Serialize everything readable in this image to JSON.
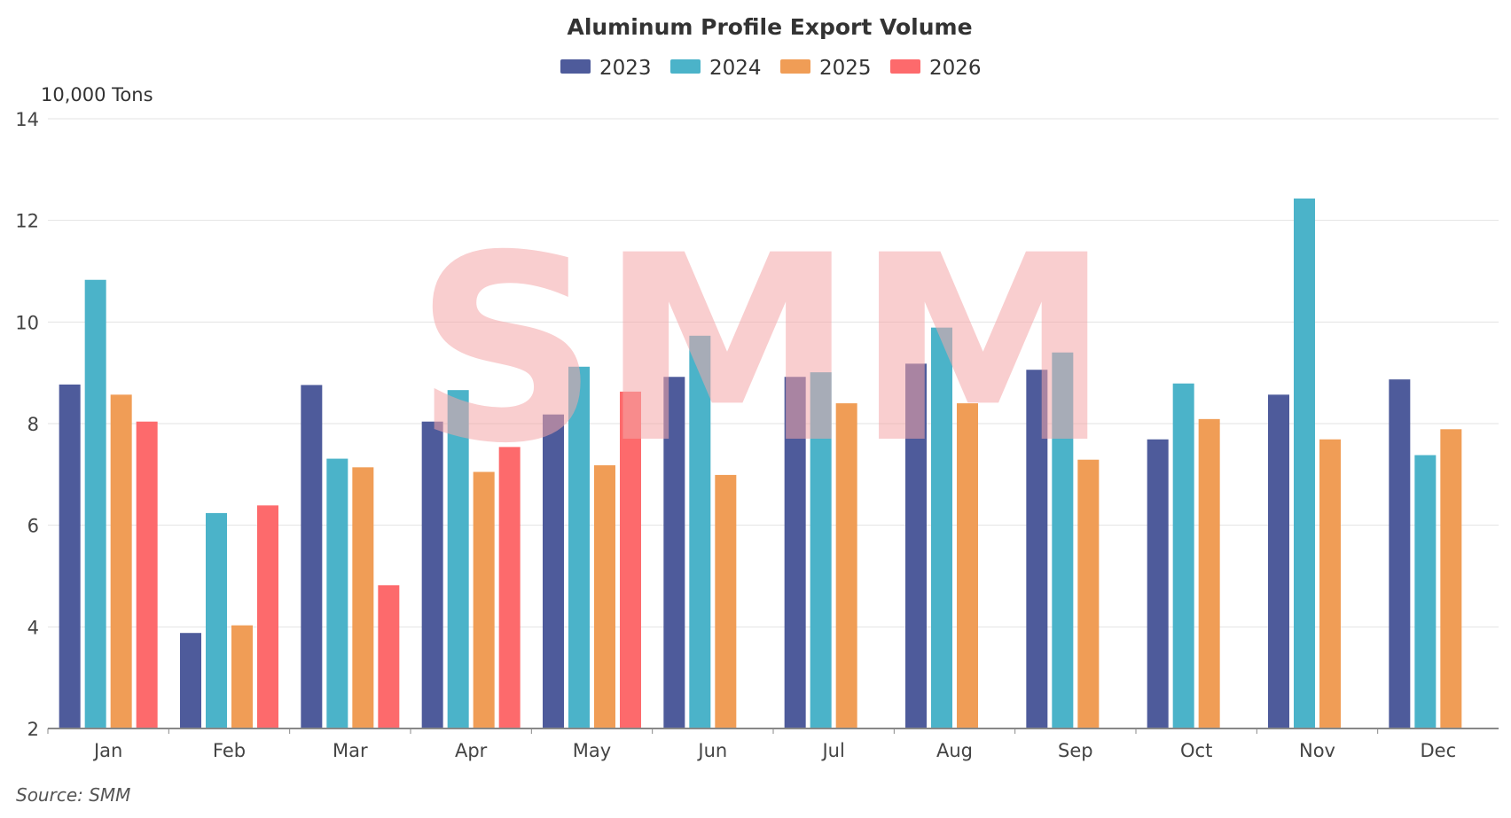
{
  "chart_data": {
    "type": "bar",
    "title": "Aluminum Profile Export Volume",
    "ylabel": "10,000 Tons",
    "ylim": [
      2,
      14
    ],
    "yticks": [
      2,
      4,
      6,
      8,
      10,
      12,
      14
    ],
    "grid": true,
    "legend_position": "top-center",
    "categories": [
      "Jan",
      "Feb",
      "Mar",
      "Apr",
      "May",
      "Jun",
      "Jul",
      "Aug",
      "Sep",
      "Oct",
      "Nov",
      "Dec"
    ],
    "series": [
      {
        "name": "2023",
        "color": "#4e5b9b",
        "values": [
          8.77,
          3.88,
          8.76,
          8.04,
          8.18,
          8.92,
          8.92,
          9.18,
          9.06,
          7.69,
          8.57,
          8.87
        ]
      },
      {
        "name": "2024",
        "color": "#4bb3c9",
        "values": [
          10.83,
          6.24,
          7.31,
          8.66,
          9.12,
          9.73,
          9.01,
          9.89,
          9.4,
          8.79,
          12.43,
          7.38
        ]
      },
      {
        "name": "2025",
        "color": "#f09d56",
        "values": [
          8.57,
          4.03,
          7.14,
          7.05,
          7.18,
          6.99,
          8.4,
          8.4,
          7.29,
          8.09,
          7.69,
          7.89
        ]
      },
      {
        "name": "2026",
        "color": "#fd6a6c",
        "values": [
          8.04,
          6.39,
          4.82,
          7.54,
          8.63,
          null,
          null,
          null,
          null,
          null,
          null,
          null
        ]
      }
    ],
    "source": "Source:  SMM",
    "watermark": "SMM"
  }
}
